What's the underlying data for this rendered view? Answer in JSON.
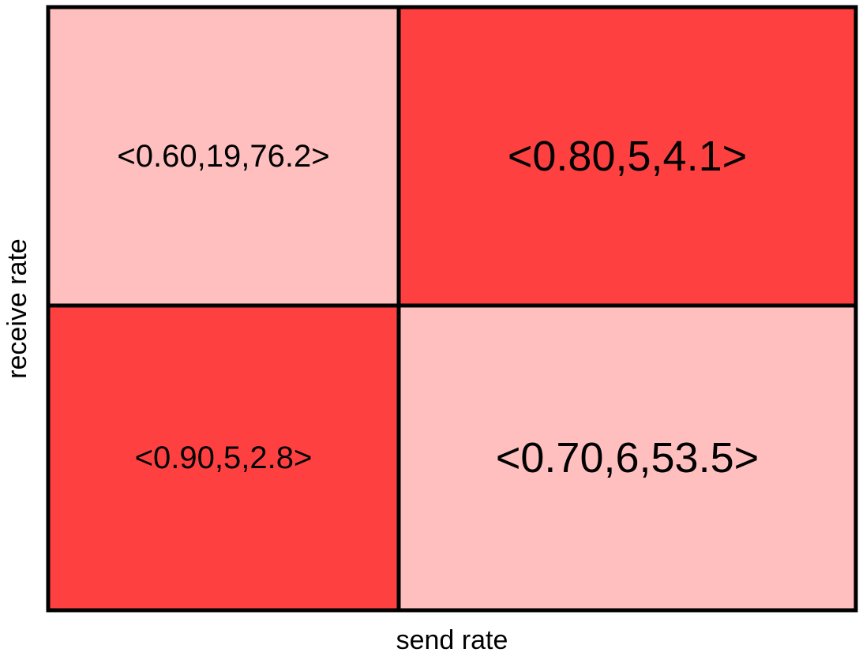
{
  "chart_data": {
    "type": "heatmap",
    "title": "",
    "xlabel": "send rate",
    "ylabel": "receive rate",
    "grid": {
      "columns": 2,
      "rows": 2
    },
    "colors": {
      "high": "#ff4040",
      "low": "#ffbfbf",
      "border": "#000000"
    },
    "cells": [
      {
        "row": 0,
        "col": 0,
        "label": "<0.60,19,76.2>",
        "shade": "low"
      },
      {
        "row": 0,
        "col": 1,
        "label": "<0.80,5,4.1>",
        "shade": "high"
      },
      {
        "row": 1,
        "col": 0,
        "label": "<0.90,5,2.8>",
        "shade": "high"
      },
      {
        "row": 1,
        "col": 1,
        "label": "<0.70,6,53.5>",
        "shade": "low"
      }
    ]
  }
}
